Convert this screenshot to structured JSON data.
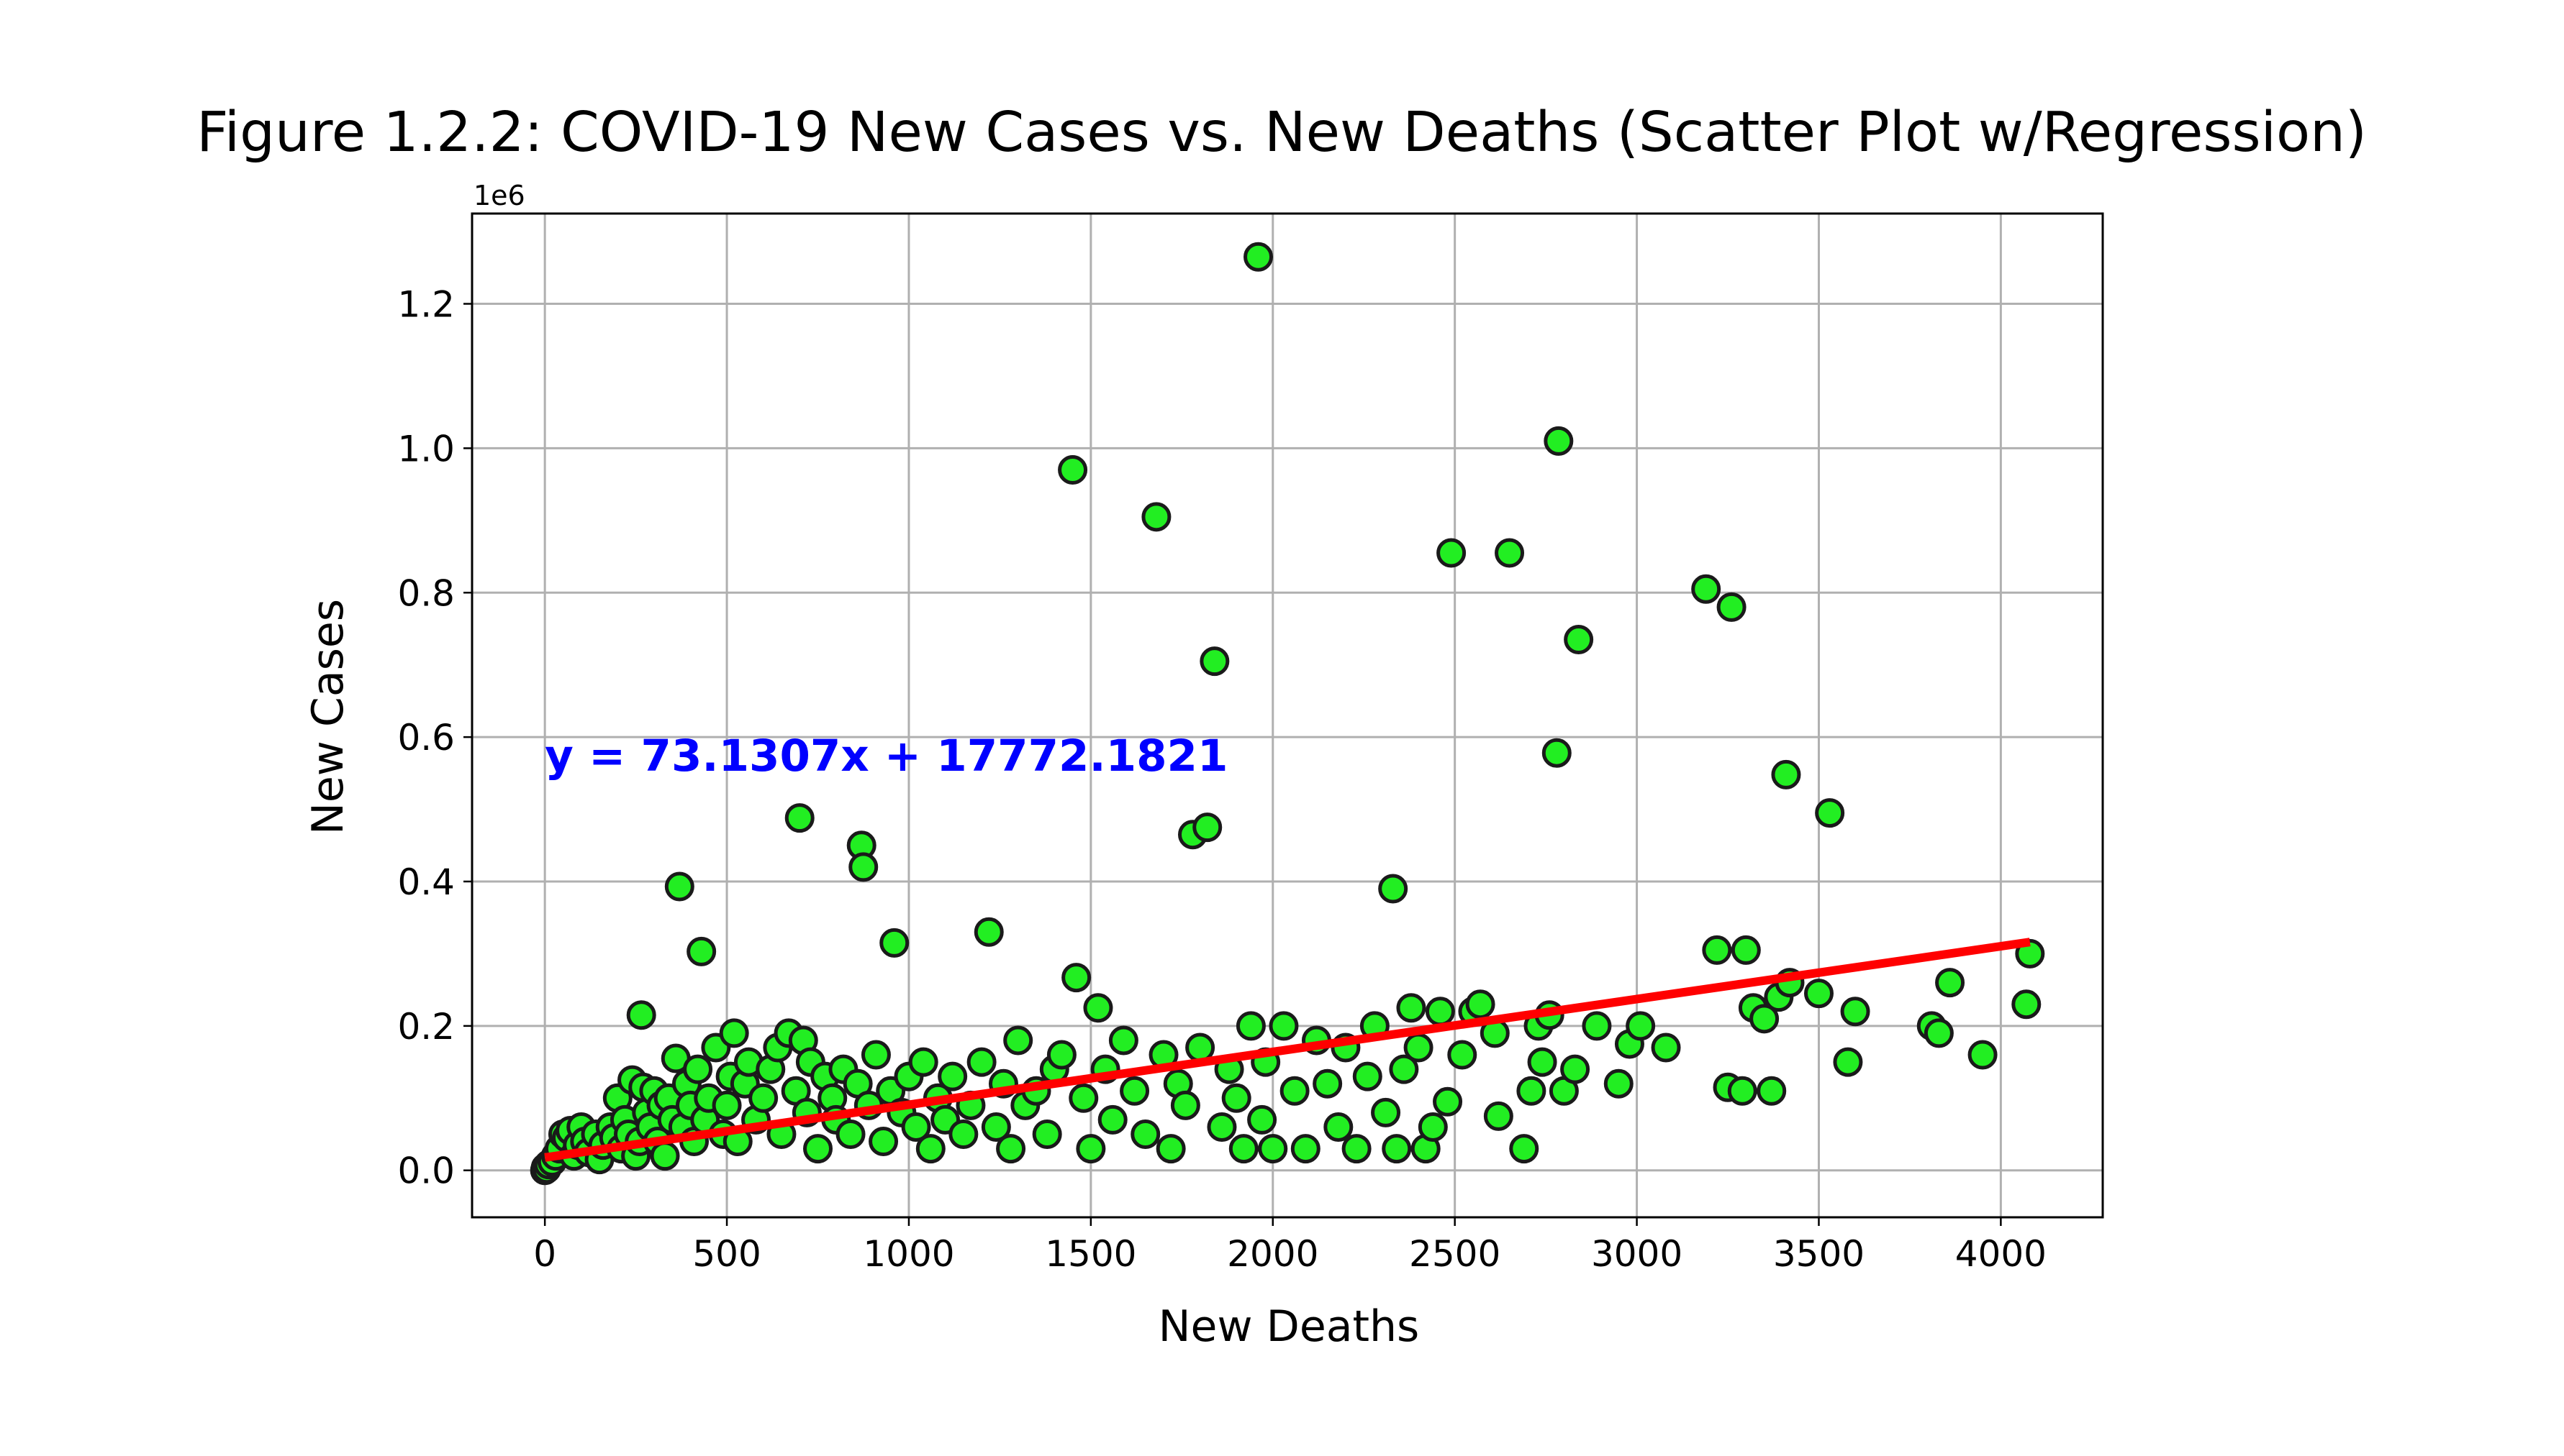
{
  "chart_data": {
    "type": "scatter",
    "title": "Figure 1.2.2: COVID-19 New Cases vs. New Deaths (Scatter Plot w/Regression)",
    "xlabel": "New Deaths",
    "ylabel": "New Cases",
    "y_offset_label": "1e6",
    "xlim": [
      -200,
      4280
    ],
    "ylim": [
      -0.065,
      1.325
    ],
    "x_ticks": [
      0,
      500,
      1000,
      1500,
      2000,
      2500,
      3000,
      3500,
      4000
    ],
    "x_tick_labels": [
      "0",
      "500",
      "1000",
      "1500",
      "2000",
      "2500",
      "3000",
      "3500",
      "4000"
    ],
    "y_ticks": [
      0.0,
      0.2,
      0.4,
      0.6,
      0.8,
      1.0,
      1.2
    ],
    "y_tick_labels": [
      "0.0",
      "0.2",
      "0.4",
      "0.6",
      "0.8",
      "1.0",
      "1.2"
    ],
    "grid": true,
    "colors": {
      "marker_fill": "#22ee22",
      "marker_edge": "#1a1a1a",
      "regression": "#ff0000",
      "equation": "#0000ff"
    },
    "regression": {
      "slope": 73.1307,
      "intercept": 17772.1821,
      "x_range": [
        0,
        4080
      ],
      "equation_label": "y = 73.1307x + 17772.1821",
      "label_position": [
        0,
        0.575
      ]
    },
    "series": [
      {
        "points": [
          [
            0,
            0.0
          ],
          [
            2,
            0.004
          ],
          [
            5,
            0.002
          ],
          [
            10,
            0.008
          ],
          [
            20,
            0.012
          ],
          [
            30,
            0.02
          ],
          [
            40,
            0.03
          ],
          [
            50,
            0.05
          ],
          [
            60,
            0.045
          ],
          [
            70,
            0.055
          ],
          [
            80,
            0.02
          ],
          [
            90,
            0.035
          ],
          [
            100,
            0.06
          ],
          [
            110,
            0.04
          ],
          [
            120,
            0.025
          ],
          [
            140,
            0.05
          ],
          [
            150,
            0.015
          ],
          [
            160,
            0.035
          ],
          [
            180,
            0.06
          ],
          [
            190,
            0.045
          ],
          [
            200,
            0.1
          ],
          [
            210,
            0.03
          ],
          [
            220,
            0.07
          ],
          [
            230,
            0.05
          ],
          [
            240,
            0.125
          ],
          [
            250,
            0.02
          ],
          [
            260,
            0.04
          ],
          [
            265,
            0.215
          ],
          [
            270,
            0.115
          ],
          [
            280,
            0.08
          ],
          [
            290,
            0.06
          ],
          [
            300,
            0.11
          ],
          [
            310,
            0.04
          ],
          [
            320,
            0.09
          ],
          [
            330,
            0.02
          ],
          [
            340,
            0.1
          ],
          [
            350,
            0.07
          ],
          [
            360,
            0.155
          ],
          [
            370,
            0.393
          ],
          [
            380,
            0.06
          ],
          [
            390,
            0.12
          ],
          [
            400,
            0.09
          ],
          [
            410,
            0.04
          ],
          [
            420,
            0.14
          ],
          [
            430,
            0.303
          ],
          [
            440,
            0.07
          ],
          [
            450,
            0.1
          ],
          [
            470,
            0.17
          ],
          [
            490,
            0.05
          ],
          [
            500,
            0.09
          ],
          [
            510,
            0.13
          ],
          [
            520,
            0.19
          ],
          [
            530,
            0.04
          ],
          [
            550,
            0.12
          ],
          [
            560,
            0.15
          ],
          [
            580,
            0.07
          ],
          [
            600,
            0.1
          ],
          [
            620,
            0.14
          ],
          [
            640,
            0.17
          ],
          [
            650,
            0.05
          ],
          [
            670,
            0.19
          ],
          [
            690,
            0.11
          ],
          [
            700,
            0.488
          ],
          [
            710,
            0.18
          ],
          [
            720,
            0.08
          ],
          [
            730,
            0.15
          ],
          [
            750,
            0.03
          ],
          [
            770,
            0.13
          ],
          [
            790,
            0.1
          ],
          [
            800,
            0.07
          ],
          [
            820,
            0.14
          ],
          [
            840,
            0.05
          ],
          [
            860,
            0.12
          ],
          [
            870,
            0.45
          ],
          [
            875,
            0.42
          ],
          [
            890,
            0.09
          ],
          [
            910,
            0.16
          ],
          [
            930,
            0.04
          ],
          [
            950,
            0.11
          ],
          [
            960,
            0.315
          ],
          [
            980,
            0.08
          ],
          [
            1000,
            0.13
          ],
          [
            1020,
            0.06
          ],
          [
            1040,
            0.15
          ],
          [
            1060,
            0.03
          ],
          [
            1080,
            0.1
          ],
          [
            1100,
            0.07
          ],
          [
            1120,
            0.13
          ],
          [
            1150,
            0.05
          ],
          [
            1170,
            0.09
          ],
          [
            1200,
            0.15
          ],
          [
            1220,
            0.33
          ],
          [
            1240,
            0.06
          ],
          [
            1260,
            0.12
          ],
          [
            1280,
            0.03
          ],
          [
            1300,
            0.18
          ],
          [
            1320,
            0.09
          ],
          [
            1350,
            0.11
          ],
          [
            1380,
            0.05
          ],
          [
            1400,
            0.14
          ],
          [
            1420,
            0.16
          ],
          [
            1450,
            0.97
          ],
          [
            1460,
            0.267
          ],
          [
            1480,
            0.1
          ],
          [
            1500,
            0.03
          ],
          [
            1520,
            0.225
          ],
          [
            1540,
            0.14
          ],
          [
            1560,
            0.07
          ],
          [
            1590,
            0.18
          ],
          [
            1620,
            0.11
          ],
          [
            1650,
            0.05
          ],
          [
            1680,
            0.905
          ],
          [
            1700,
            0.16
          ],
          [
            1720,
            0.03
          ],
          [
            1740,
            0.12
          ],
          [
            1760,
            0.09
          ],
          [
            1780,
            0.465
          ],
          [
            1800,
            0.17
          ],
          [
            1820,
            0.475
          ],
          [
            1840,
            0.705
          ],
          [
            1860,
            0.06
          ],
          [
            1880,
            0.14
          ],
          [
            1900,
            0.1
          ],
          [
            1920,
            0.03
          ],
          [
            1940,
            0.2
          ],
          [
            1960,
            1.265
          ],
          [
            1970,
            0.07
          ],
          [
            1980,
            0.15
          ],
          [
            2000,
            0.03
          ],
          [
            2030,
            0.2
          ],
          [
            2060,
            0.11
          ],
          [
            2090,
            0.03
          ],
          [
            2120,
            0.18
          ],
          [
            2150,
            0.12
          ],
          [
            2180,
            0.06
          ],
          [
            2200,
            0.17
          ],
          [
            2230,
            0.03
          ],
          [
            2260,
            0.13
          ],
          [
            2280,
            0.2
          ],
          [
            2310,
            0.08
          ],
          [
            2330,
            0.39
          ],
          [
            2340,
            0.03
          ],
          [
            2360,
            0.14
          ],
          [
            2380,
            0.225
          ],
          [
            2400,
            0.17
          ],
          [
            2420,
            0.03
          ],
          [
            2440,
            0.06
          ],
          [
            2460,
            0.22
          ],
          [
            2480,
            0.095
          ],
          [
            2490,
            0.855
          ],
          [
            2520,
            0.16
          ],
          [
            2550,
            0.22
          ],
          [
            2570,
            0.23
          ],
          [
            2610,
            0.19
          ],
          [
            2620,
            0.075
          ],
          [
            2650,
            0.855
          ],
          [
            2690,
            0.03
          ],
          [
            2710,
            0.11
          ],
          [
            2730,
            0.2
          ],
          [
            2740,
            0.15
          ],
          [
            2760,
            0.215
          ],
          [
            2780,
            0.578
          ],
          [
            2785,
            1.01
          ],
          [
            2800,
            0.11
          ],
          [
            2830,
            0.14
          ],
          [
            2840,
            0.735
          ],
          [
            2890,
            0.2
          ],
          [
            2950,
            0.12
          ],
          [
            2980,
            0.175
          ],
          [
            3010,
            0.2
          ],
          [
            3080,
            0.17
          ],
          [
            3190,
            0.805
          ],
          [
            3220,
            0.305
          ],
          [
            3250,
            0.115
          ],
          [
            3260,
            0.78
          ],
          [
            3290,
            0.11
          ],
          [
            3300,
            0.305
          ],
          [
            3320,
            0.225
          ],
          [
            3350,
            0.21
          ],
          [
            3370,
            0.11
          ],
          [
            3390,
            0.24
          ],
          [
            3410,
            0.548
          ],
          [
            3420,
            0.26
          ],
          [
            3500,
            0.245
          ],
          [
            3530,
            0.495
          ],
          [
            3580,
            0.15
          ],
          [
            3600,
            0.22
          ],
          [
            3810,
            0.2
          ],
          [
            3830,
            0.19
          ],
          [
            3860,
            0.26
          ],
          [
            3950,
            0.16
          ],
          [
            4070,
            0.23
          ],
          [
            4080,
            0.3
          ]
        ]
      }
    ]
  }
}
